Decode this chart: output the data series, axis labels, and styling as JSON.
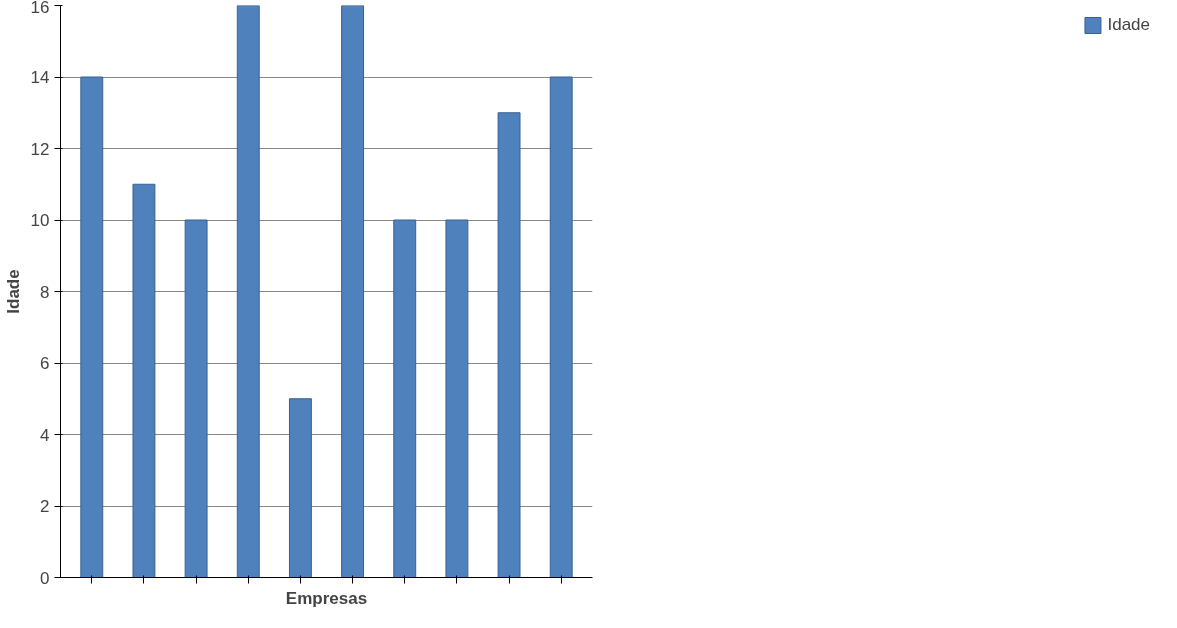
{
  "chart_data": {
    "type": "bar",
    "xlabel": "Empresas",
    "ylabel": "Idade",
    "categories": [
      null,
      null,
      null,
      null,
      null,
      null,
      null,
      null,
      null,
      null
    ],
    "series": [
      {
        "name": "Idade",
        "color": "#4f81bd",
        "values": [
          14,
          11,
          10,
          16,
          5,
          16,
          10,
          10,
          13,
          14
        ]
      }
    ],
    "ylim": [
      0,
      16
    ],
    "yticks": [
      0,
      2,
      4,
      6,
      8,
      10,
      12,
      14,
      16
    ],
    "grid": "y",
    "legend": "right",
    "tick_labels": "y"
  }
}
